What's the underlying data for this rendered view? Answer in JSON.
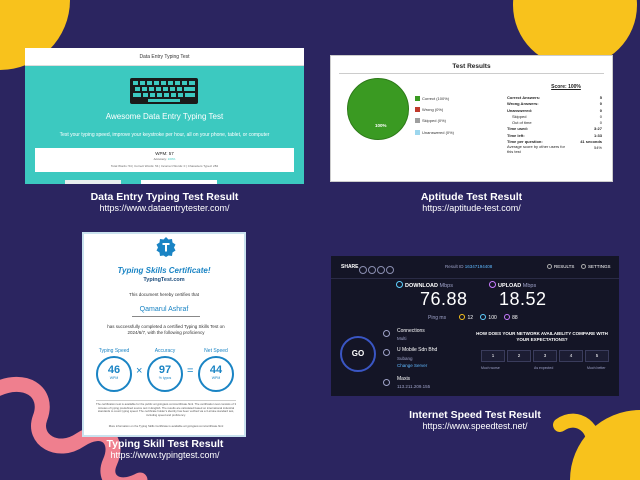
{
  "colors": {
    "background": "#2b2560",
    "accent_yellow": "#f8c21c",
    "accent_pink": "#ef7f8e",
    "teal": "#3cc9c0",
    "cert_blue": "#1a84c4",
    "speed_dark": "#141526"
  },
  "card_data_entry": {
    "header": "Data Entry Typing Test",
    "title": "Awesome Data Entry Typing Test",
    "subtitle": "Test your typing speed, improve your keystroke per hour, all on your phone, tablet, or computer",
    "wpm": "WPM: 57",
    "accuracy_label": "Accuracy:",
    "accuracy_value": "100%",
    "stats": "Total Words: 54 | Correct Words: 54 | Incorrect Words: 0 | Characters Typed: 284",
    "keyboard_icon": "keyboard-icon"
  },
  "card_aptitude": {
    "header": "Test Results",
    "pie_label": "100%",
    "legend": [
      {
        "label": "Correct (100%)",
        "color": "#3a9a22"
      },
      {
        "label": "Wrong (0%)",
        "color": "#c0392b"
      },
      {
        "label": "Skipped (0%)",
        "color": "#9e9e9e"
      },
      {
        "label": "Unanswered (0%)",
        "color": "#9dd7ee"
      }
    ],
    "score": "Score: 100%",
    "rows": [
      {
        "label": "Correct Answers:",
        "value": "5",
        "style": "b"
      },
      {
        "label": "Wrong Answers:",
        "value": "0",
        "style": "b"
      },
      {
        "label": "Unanswered:",
        "value": "0",
        "style": "b"
      },
      {
        "label": "Skipped",
        "value": "0",
        "style": "i"
      },
      {
        "label": "Out of time",
        "value": "0",
        "style": "i"
      },
      {
        "label": "Time used:",
        "value": "3:27",
        "style": "b"
      },
      {
        "label": "Time left:",
        "value": "1:33",
        "style": "b"
      },
      {
        "label": "Time per question:",
        "value": "41 seconds",
        "style": "b"
      },
      {
        "label": "Average score by other users for this test",
        "value": "54%",
        "style": ""
      }
    ]
  },
  "card_certificate": {
    "title": "Typing Skills Certificate!",
    "site": "TypingTest.com",
    "certifies": "This document hereby certifies that",
    "name": "Qamarul Ashraf",
    "completed": "has successfully completed a certified Typing Skills Test on 2024/6/7, with the following proficiency",
    "metrics": [
      {
        "label": "Typing Speed",
        "value": "46",
        "unit": "WPM"
      },
      {
        "label": "Accuracy",
        "value": "97",
        "unit": "% typos"
      },
      {
        "label": "Net Speed",
        "value": "44",
        "unit": "WPM"
      }
    ],
    "operator_x": "×",
    "operator_eq": "=",
    "fine_print_1": "The certification test is available for the public at typingtest.com/certificate.html. The certification test consists of 3 minutes of typing predefined source text in English. The results are calculated based on international industrial standards to count typing speed. The certificate holder's identity has been verified via a 3-stroke standard test, including speed and proficiency.",
    "fine_print_2": "More information on the Typing Skills Certificate is available at typingtest.com/certificate.html"
  },
  "card_speedtest": {
    "share": "SHARE",
    "result_id_label": "Result ID",
    "result_id": "16347194408",
    "results": "RESULTS",
    "settings": "SETTINGS",
    "download_label": "DOWNLOAD",
    "upload_label": "UPLOAD",
    "mbps": "Mbps",
    "download_value": "76.88",
    "upload_value": "18.52",
    "ping_label": "Ping",
    "ping_unit": "ms",
    "ping_idle": "12",
    "ping_down": "100",
    "ping_up": "88",
    "go": "GO",
    "connections_label": "Connections",
    "connections_value": "Multi",
    "isp": "U Mobile Sdn Bhd",
    "location": "Subang",
    "change_server": "Change Server",
    "host": "Maxis",
    "ip": "113.211.209.155",
    "question": "HOW DOES YOUR NETWORK AVAILABILITY COMPARE WITH YOUR EXPECTATIONS?",
    "scale": [
      "1",
      "2",
      "3",
      "4",
      "5"
    ],
    "scale_low": "Much worse",
    "scale_mid": "As expected",
    "scale_high": "Much better"
  },
  "captions": {
    "data_entry_title": "Data Entry Typing Test Result",
    "data_entry_url": "https://www.dataentrytester.com/",
    "aptitude_title": "Aptitude Test Result",
    "aptitude_url": "https://aptitude-test.com/",
    "typing_title": "Typing Skill Test Result",
    "typing_url": "https://www.typingtest.com/",
    "speed_title": "Internet Speed Test Result",
    "speed_url": "https://www.speedtest.net/"
  }
}
